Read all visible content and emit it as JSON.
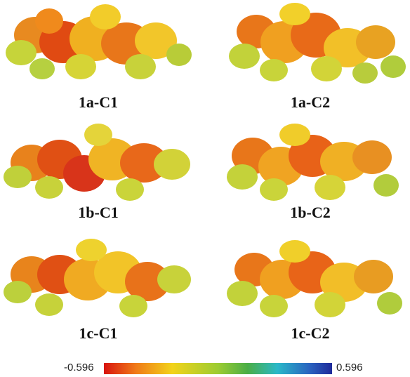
{
  "panels": [
    {
      "label": "1a-C1"
    },
    {
      "label": "1a-C2"
    },
    {
      "label": "1b-C1"
    },
    {
      "label": "1b-C2"
    },
    {
      "label": "1c-C1"
    },
    {
      "label": "1c-C2"
    }
  ],
  "colorbar": {
    "min_label": "-0.596",
    "max_label": "0.596",
    "colors": [
      "#d8140e",
      "#f07a18",
      "#f2d31a",
      "#9ccc32",
      "#4aae46",
      "#2ab8c8",
      "#2a64c0",
      "#1f2a9a"
    ]
  }
}
